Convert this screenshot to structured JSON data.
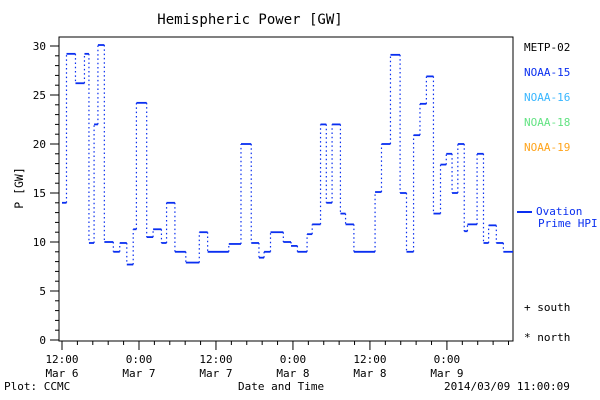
{
  "colors": {
    "axis": "#000000",
    "line": "#0a2ff0",
    "metp02": "#000000",
    "noaa15": "#0a2ff0",
    "noaa16": "#38b6ff",
    "noaa18": "#63e383",
    "noaa19": "#ffa41c"
  },
  "legend": {
    "satellites": [
      {
        "label": "METP-02"
      },
      {
        "label": "NOAA-15"
      },
      {
        "label": "NOAA-16"
      },
      {
        "label": "NOAA-18"
      },
      {
        "label": "NOAA-19"
      }
    ],
    "ovation": {
      "line1": "Ovation",
      "line2": "Prime HPI"
    },
    "symbols": [
      {
        "marker": "+",
        "label": "south"
      },
      {
        "marker": "*",
        "label": "north"
      }
    ]
  },
  "footer": {
    "plot_source": "Plot: CCMC",
    "timestamp": "2014/03/09 11:00:09"
  },
  "chart_data": {
    "type": "line",
    "style": "step-segments-dotted-connectors",
    "title": "Hemispheric Power [GW]",
    "xlabel": "Date and Time",
    "ylabel": "P [GW]",
    "series_name": "Ovation Prime HPI",
    "grid": false,
    "legend_position": "right",
    "ylim": [
      0,
      31
    ],
    "y_major_ticks": [
      0,
      5,
      10,
      15,
      20,
      25,
      30
    ],
    "y_minor_step": 1,
    "x_start": "2014-03-06 12:00",
    "x_hours_range": [
      0,
      70.3
    ],
    "x_major_ticks": [
      {
        "t": 0,
        "time": "12:00",
        "date": "Mar 6"
      },
      {
        "t": 12,
        "time": "0:00",
        "date": "Mar 7"
      },
      {
        "t": 24,
        "time": "12:00",
        "date": "Mar 7"
      },
      {
        "t": 36,
        "time": "0:00",
        "date": "Mar 8"
      },
      {
        "t": 48,
        "time": "12:00",
        "date": "Mar 8"
      },
      {
        "t": 60,
        "time": "0:00",
        "date": "Mar 9"
      }
    ],
    "x_minor_per_major": 5,
    "segments_hours_gw": [
      [
        0.0,
        0.7,
        14.0
      ],
      [
        0.7,
        2.1,
        29.2
      ],
      [
        2.1,
        3.5,
        26.2
      ],
      [
        3.5,
        4.2,
        29.2
      ],
      [
        4.2,
        5.0,
        9.9
      ],
      [
        5.0,
        5.6,
        22.0
      ],
      [
        5.6,
        6.6,
        30.1
      ],
      [
        6.6,
        8.0,
        10.0
      ],
      [
        8.0,
        9.0,
        9.0
      ],
      [
        9.0,
        10.1,
        9.9
      ],
      [
        10.1,
        11.1,
        7.7
      ],
      [
        11.1,
        11.6,
        11.3
      ],
      [
        11.6,
        13.2,
        24.2
      ],
      [
        13.2,
        14.2,
        10.5
      ],
      [
        14.2,
        15.5,
        11.3
      ],
      [
        15.5,
        16.3,
        9.9
      ],
      [
        16.3,
        17.6,
        14.0
      ],
      [
        17.6,
        19.3,
        9.0
      ],
      [
        19.3,
        21.4,
        7.9
      ],
      [
        21.4,
        22.7,
        11.0
      ],
      [
        22.7,
        26.0,
        9.0
      ],
      [
        26.0,
        27.9,
        9.8
      ],
      [
        27.9,
        29.5,
        20.0
      ],
      [
        29.5,
        30.7,
        9.9
      ],
      [
        30.7,
        31.5,
        8.4
      ],
      [
        31.5,
        32.5,
        9.0
      ],
      [
        32.5,
        34.5,
        11.0
      ],
      [
        34.5,
        35.7,
        10.0
      ],
      [
        35.7,
        36.7,
        9.6
      ],
      [
        36.7,
        38.2,
        9.0
      ],
      [
        38.2,
        39.0,
        10.8
      ],
      [
        39.0,
        40.3,
        11.8
      ],
      [
        40.3,
        41.2,
        22.0
      ],
      [
        41.2,
        42.1,
        14.0
      ],
      [
        42.1,
        43.4,
        22.0
      ],
      [
        43.4,
        44.2,
        12.9
      ],
      [
        44.2,
        45.5,
        11.8
      ],
      [
        45.5,
        48.8,
        9.0
      ],
      [
        48.8,
        49.8,
        15.1
      ],
      [
        49.8,
        51.2,
        20.0
      ],
      [
        51.2,
        52.7,
        29.1
      ],
      [
        52.7,
        53.7,
        15.0
      ],
      [
        53.7,
        54.8,
        9.0
      ],
      [
        54.8,
        55.8,
        20.9
      ],
      [
        55.8,
        56.8,
        24.1
      ],
      [
        56.8,
        57.9,
        26.9
      ],
      [
        57.9,
        59.0,
        12.9
      ],
      [
        59.0,
        59.9,
        17.9
      ],
      [
        59.9,
        60.8,
        19.0
      ],
      [
        60.8,
        61.7,
        15.0
      ],
      [
        61.7,
        62.7,
        20.0
      ],
      [
        62.7,
        63.2,
        11.1
      ],
      [
        63.2,
        64.7,
        11.8
      ],
      [
        64.7,
        65.7,
        19.0
      ],
      [
        65.7,
        66.5,
        9.9
      ],
      [
        66.5,
        67.7,
        11.7
      ],
      [
        67.7,
        68.8,
        9.9
      ],
      [
        68.8,
        70.3,
        9.0
      ]
    ]
  }
}
